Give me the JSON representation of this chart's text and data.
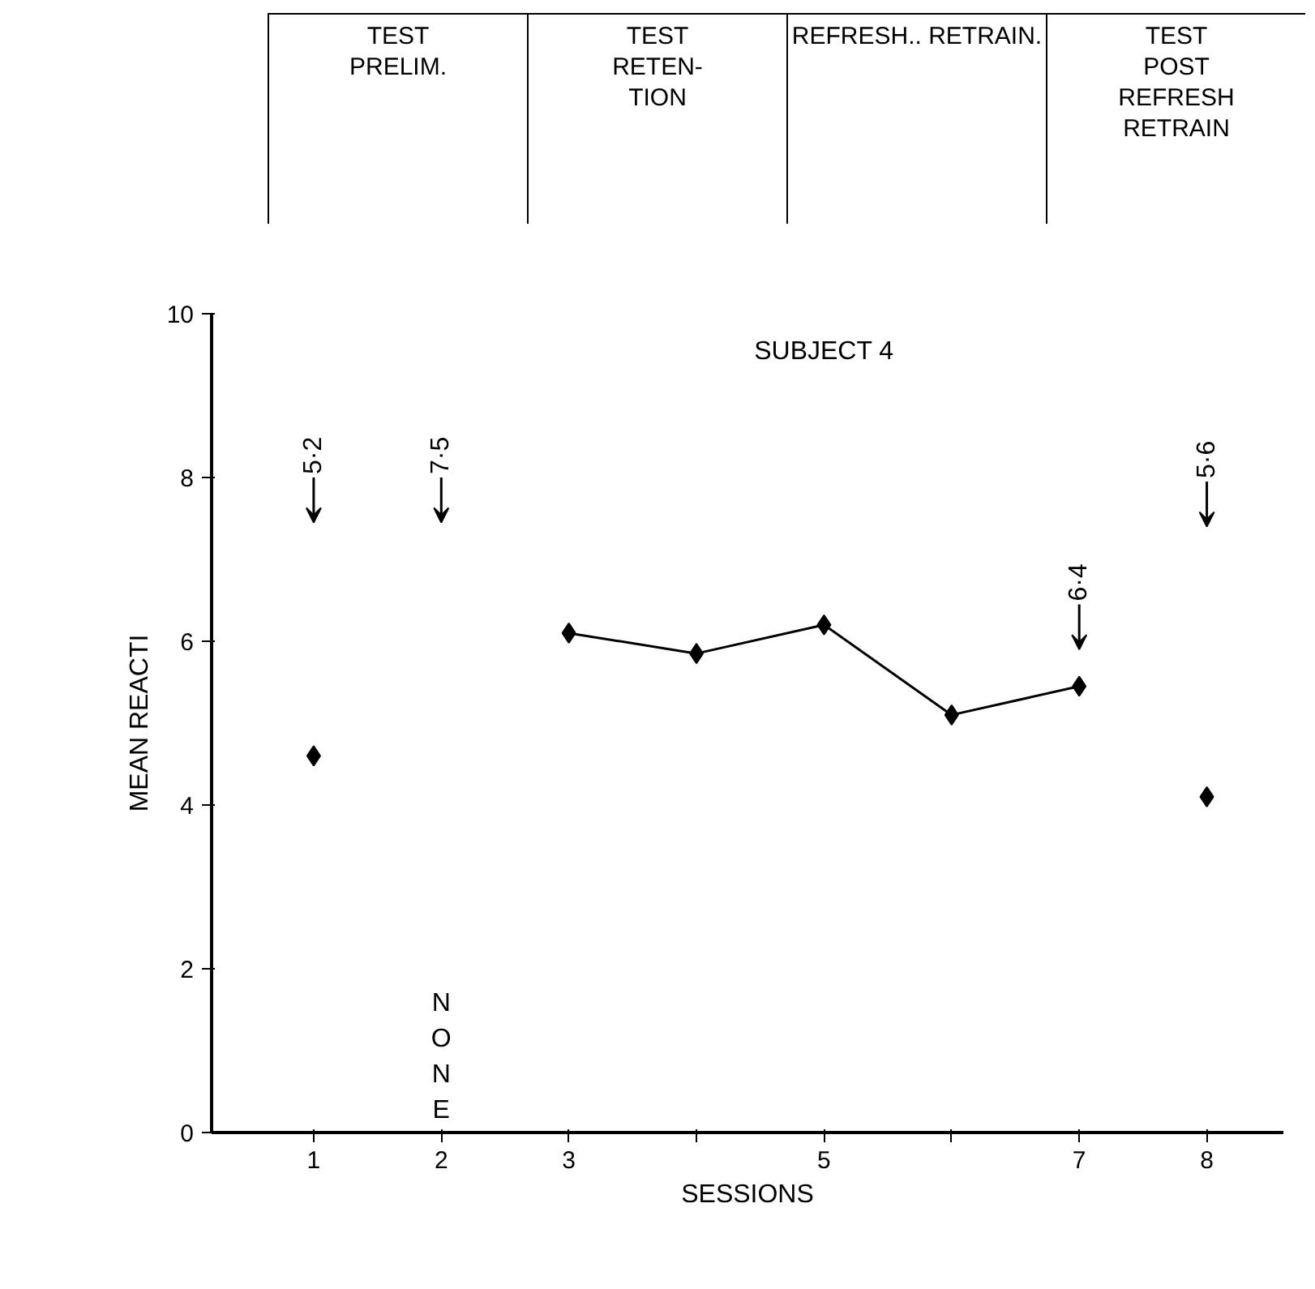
{
  "chart_data": {
    "type": "line",
    "title": "SUBJECT 4",
    "xlabel": "SESSIONS",
    "ylabel": "MEAN REACTI",
    "categories": [
      "1",
      "2",
      "3",
      null,
      "5",
      null,
      "7",
      "8"
    ],
    "ylim": [
      0,
      10
    ],
    "yticks": [
      0,
      2,
      4,
      6,
      8,
      10
    ],
    "marker": "diamond",
    "grid": false,
    "series": [
      {
        "type": "scatter",
        "color": "#000000",
        "values": [
          4.6,
          null,
          null,
          null,
          null,
          null,
          null,
          4.1
        ]
      },
      {
        "color": "#000000",
        "values": [
          null,
          null,
          6.1,
          5.85,
          6.2,
          5.1,
          5.45,
          null
        ]
      }
    ],
    "annotations": [
      "TEST\nPRELIM.",
      "TEST\nRETEN-\nTION",
      "REFRESH.. RETRAIN.",
      "TEST\nPOST\nREFRESH\nRETRAIN",
      "5·2",
      "7·5",
      "6·4",
      "5·6",
      "NONE"
    ]
  }
}
